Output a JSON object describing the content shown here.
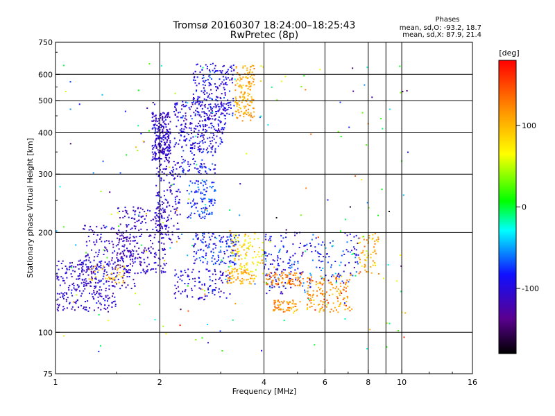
{
  "chart_data": {
    "type": "scatter",
    "title": "Tromsø 20160307 18:24:00–18:25:43",
    "subtitle": "RwPretec (8p)",
    "xlabel": "Frequency [MHz]",
    "ylabel": "Stationary phase Virtual Height [km]",
    "x_scale": "log",
    "y_scale": "log",
    "xlim": [
      1,
      16
    ],
    "ylim": [
      75,
      750
    ],
    "x_ticks": [
      1,
      2,
      4,
      6,
      8,
      10,
      16
    ],
    "x_tick_labels": [
      "1",
      "2",
      "4",
      "6",
      "8",
      "10",
      "16"
    ],
    "y_ticks": [
      75,
      100,
      200,
      300,
      400,
      500,
      600,
      750
    ],
    "y_tick_labels": [
      "75",
      "100",
      "200",
      "300",
      "400",
      "500",
      "600",
      "750"
    ],
    "grid_x": [
      2,
      4,
      6,
      8,
      9,
      10
    ],
    "grid_y": [
      100,
      200,
      300,
      400,
      500,
      600
    ],
    "grid": true,
    "phases": {
      "heading": "Phases",
      "o_line": "mean, sd,O: -93.2, 18.7",
      "x_line": "mean, sd,X:  87.9, 21.4"
    },
    "colorbar": {
      "label": "[deg]",
      "range": [
        -180,
        180
      ],
      "ticks": [
        100,
        0,
        -100
      ],
      "tick_labels": [
        "100",
        "0",
        "-100"
      ],
      "colormap": "rainbow (black-purple-blue-cyan-green-yellow-orange-red)"
    },
    "clusters": [
      {
        "fmin": 1.0,
        "fmax": 1.5,
        "hmin": 115,
        "hmax": 165,
        "phase": -105,
        "spread": 18,
        "n": 260
      },
      {
        "fmin": 1.2,
        "fmax": 1.7,
        "hmin": 135,
        "hmax": 210,
        "phase": -110,
        "spread": 18,
        "n": 170
      },
      {
        "fmin": 1.25,
        "fmax": 1.6,
        "hmin": 140,
        "hmax": 160,
        "phase": 95,
        "spread": 25,
        "n": 40
      },
      {
        "fmin": 1.5,
        "fmax": 2.1,
        "hmin": 150,
        "hmax": 240,
        "phase": -110,
        "spread": 18,
        "n": 260
      },
      {
        "fmin": 1.9,
        "fmax": 2.15,
        "hmin": 330,
        "hmax": 460,
        "phase": -108,
        "spread": 15,
        "n": 240
      },
      {
        "fmin": 1.95,
        "fmax": 2.3,
        "hmin": 190,
        "hmax": 330,
        "phase": -105,
        "spread": 18,
        "n": 160
      },
      {
        "fmin": 2.2,
        "fmax": 3.1,
        "hmin": 360,
        "hmax": 500,
        "phase": -100,
        "spread": 22,
        "n": 260
      },
      {
        "fmin": 2.5,
        "fmax": 3.3,
        "hmin": 450,
        "hmax": 650,
        "phase": -95,
        "spread": 22,
        "n": 200
      },
      {
        "fmin": 2.4,
        "fmax": 2.9,
        "hmin": 220,
        "hmax": 290,
        "phase": -75,
        "spread": 22,
        "n": 110
      },
      {
        "fmin": 2.3,
        "fmax": 2.9,
        "hmin": 300,
        "hmax": 360,
        "phase": -90,
        "spread": 20,
        "n": 80
      },
      {
        "fmin": 2.5,
        "fmax": 3.4,
        "hmin": 160,
        "hmax": 200,
        "phase": -85,
        "spread": 25,
        "n": 150
      },
      {
        "fmin": 2.2,
        "fmax": 3.2,
        "hmin": 125,
        "hmax": 155,
        "phase": -100,
        "spread": 20,
        "n": 110
      },
      {
        "fmin": 3.3,
        "fmax": 3.75,
        "hmin": 430,
        "hmax": 640,
        "phase": 110,
        "spread": 18,
        "n": 150
      },
      {
        "fmin": 3.2,
        "fmax": 4.0,
        "hmin": 150,
        "hmax": 200,
        "phase": 80,
        "spread": 30,
        "n": 110
      },
      {
        "fmin": 3.1,
        "fmax": 3.8,
        "hmin": 140,
        "hmax": 155,
        "phase": 105,
        "spread": 20,
        "n": 60
      },
      {
        "fmin": 4.0,
        "fmax": 5.5,
        "hmin": 130,
        "hmax": 200,
        "phase": -90,
        "spread": 30,
        "n": 150
      },
      {
        "fmin": 4.0,
        "fmax": 5.2,
        "hmin": 138,
        "hmax": 152,
        "phase": 130,
        "spread": 20,
        "n": 90
      },
      {
        "fmin": 4.2,
        "fmax": 5.0,
        "hmin": 115,
        "hmax": 125,
        "phase": 120,
        "spread": 22,
        "n": 60
      },
      {
        "fmin": 5.3,
        "fmax": 7.2,
        "hmin": 115,
        "hmax": 150,
        "phase": 120,
        "spread": 25,
        "n": 150
      },
      {
        "fmin": 5.5,
        "fmax": 7.5,
        "hmin": 140,
        "hmax": 200,
        "phase": -80,
        "spread": 35,
        "n": 90
      },
      {
        "fmin": 7.5,
        "fmax": 8.6,
        "hmin": 150,
        "hmax": 200,
        "phase": 100,
        "spread": 30,
        "n": 60
      },
      {
        "fmin": 1.0,
        "fmax": 10.5,
        "hmin": 85,
        "hmax": 660,
        "phase": 0,
        "spread": 120,
        "n": 200
      }
    ]
  }
}
